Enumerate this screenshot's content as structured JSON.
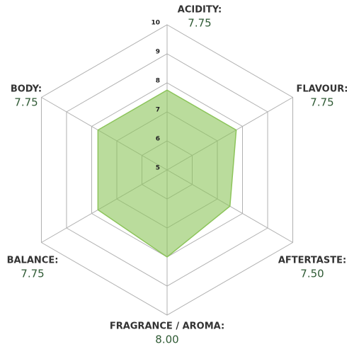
{
  "chart_data": {
    "type": "radar",
    "categories": [
      "ACIDITY:",
      "FLAVOUR:",
      "AFTERTASTE:",
      "FRAGRANCE / AROMA:",
      "BALANCE:",
      "BODY:"
    ],
    "values": [
      7.75,
      7.75,
      7.5,
      8,
      7.75,
      7.75
    ],
    "value_labels": [
      "7.75",
      "7.75",
      "7.50",
      "8.00",
      "7.75",
      "7.75"
    ],
    "color": "#8cc45a",
    "rlim": [
      5,
      10
    ],
    "rticks": [
      5,
      6,
      7,
      8,
      9,
      10
    ],
    "grid": true
  }
}
